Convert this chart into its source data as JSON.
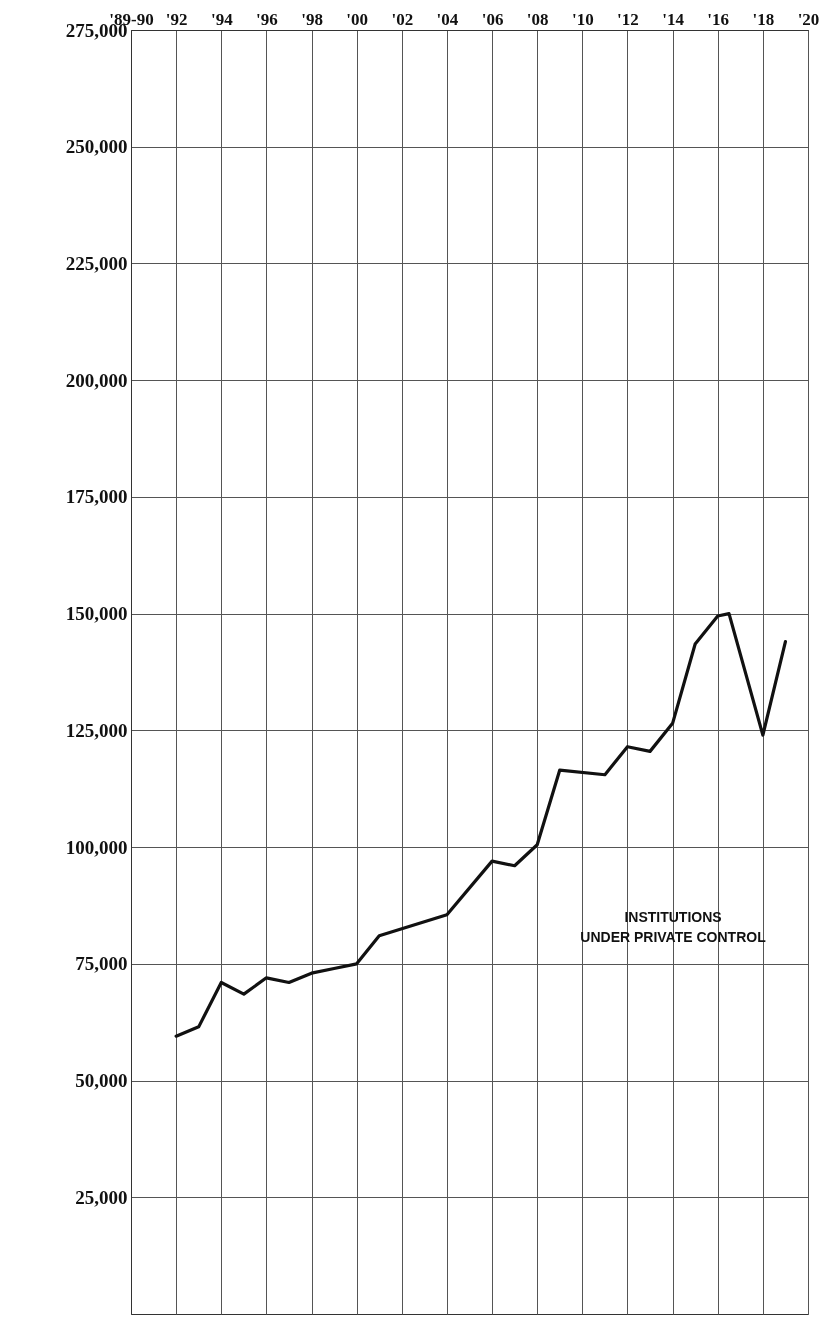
{
  "chart_data": {
    "type": "line",
    "x": [
      1892,
      1893,
      1894,
      1895,
      1896,
      1897,
      1898,
      1899,
      1900,
      1901,
      1904,
      1906,
      1907,
      1908,
      1909,
      1911,
      1912,
      1913,
      1914,
      1915,
      1916,
      1916.5,
      1918,
      1919
    ],
    "series": [
      {
        "color": "#111111",
        "values": [
          59500,
          61500,
          71000,
          68500,
          72000,
          71000,
          73000,
          74000,
          75000,
          81000,
          85500,
          97000,
          96000,
          100500,
          116500,
          115500,
          121500,
          120500,
          126500,
          143500,
          149500,
          150000,
          124000,
          144000
        ]
      }
    ],
    "xlim": [
      1890,
      1920
    ],
    "xticks": [
      {
        "value": 1890,
        "label": "'89-90"
      },
      {
        "value": 1892,
        "label": "'92"
      },
      {
        "value": 1894,
        "label": "'94"
      },
      {
        "value": 1896,
        "label": "'96"
      },
      {
        "value": 1898,
        "label": "'98"
      },
      {
        "value": 1900,
        "label": "'00"
      },
      {
        "value": 1902,
        "label": "'02"
      },
      {
        "value": 1904,
        "label": "'04"
      },
      {
        "value": 1906,
        "label": "'06"
      },
      {
        "value": 1908,
        "label": "'08"
      },
      {
        "value": 1910,
        "label": "'10"
      },
      {
        "value": 1912,
        "label": "'12"
      },
      {
        "value": 1914,
        "label": "'14"
      },
      {
        "value": 1916,
        "label": "'16"
      },
      {
        "value": 1918,
        "label": "'18"
      },
      {
        "value": 1920,
        "label": "'20"
      }
    ],
    "ylim": [
      0,
      275000
    ],
    "yticks": [
      {
        "value": 25000,
        "label": "25,000"
      },
      {
        "value": 50000,
        "label": "50,000"
      },
      {
        "value": 75000,
        "label": "75,000"
      },
      {
        "value": 100000,
        "label": "100,000"
      },
      {
        "value": 125000,
        "label": "125,000"
      },
      {
        "value": 150000,
        "label": "150,000"
      },
      {
        "value": 175000,
        "label": "175,000"
      },
      {
        "value": 200000,
        "label": "200,000"
      },
      {
        "value": 225000,
        "label": "225,000"
      },
      {
        "value": 250000,
        "label": "250,000"
      },
      {
        "value": 275000,
        "label": "275,000"
      }
    ],
    "grid": true,
    "marker": "none",
    "line_style": "solid",
    "annotations": [
      "INSTITUTIONS\nUNDER PRIVATE CONTROL"
    ]
  }
}
